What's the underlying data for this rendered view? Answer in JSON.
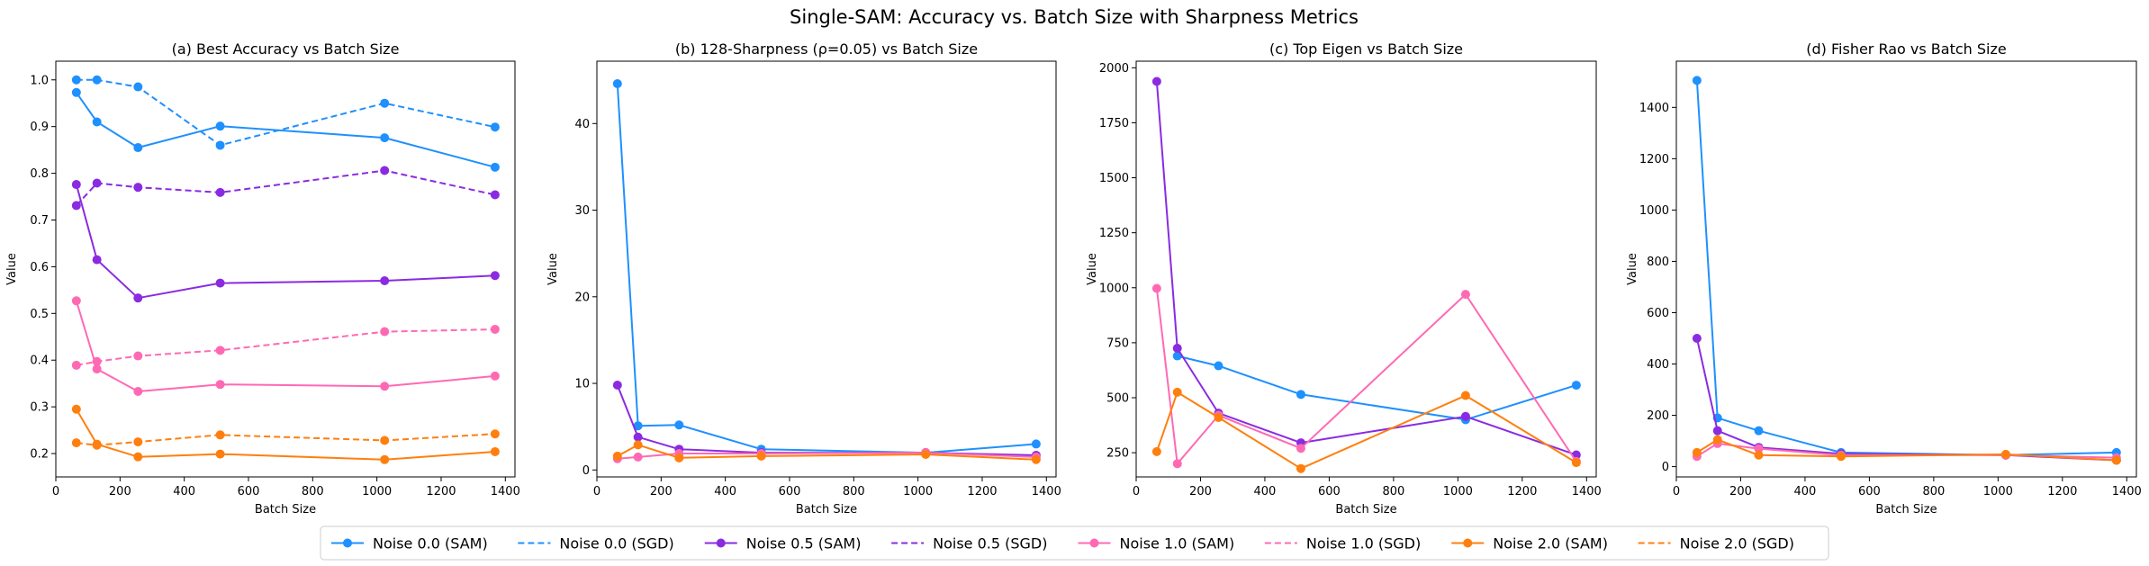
{
  "figure": {
    "suptitle": "Single-SAM: Accuracy vs. Batch Size with Sharpness Metrics"
  },
  "chart_data": [
    {
      "type": "line",
      "title": "(a) Best Accuracy vs Batch Size",
      "xlabel": "Batch Size",
      "ylabel": "Value",
      "xlim": [
        0,
        1430
      ],
      "ylim": [
        0.15,
        1.04
      ],
      "xticks": [
        0,
        200,
        400,
        600,
        800,
        1000,
        1200,
        1400
      ],
      "yticks": [
        0.2,
        0.3,
        0.4,
        0.5,
        0.6,
        0.7,
        0.8,
        0.9,
        1.0
      ],
      "ytick_labels": [
        "0.2",
        "0.3",
        "0.4",
        "0.5",
        "0.6",
        "0.7",
        "0.8",
        "0.9",
        "1.0"
      ],
      "x": [
        64,
        128,
        256,
        512,
        1024,
        1368
      ],
      "series": [
        {
          "name": "Noise 0.0 (SAM)",
          "style": "solid",
          "color": "#1e90ff",
          "values": [
            0.973,
            0.91,
            0.855,
            0.901,
            0.876,
            0.813
          ]
        },
        {
          "name": "Noise 0.0 (SGD)",
          "style": "dashed",
          "color": "#1e90ff",
          "values": [
            1.0,
            1.0,
            0.985,
            0.86,
            0.95,
            0.899
          ]
        },
        {
          "name": "Noise 0.5 (SAM)",
          "style": "solid",
          "color": "#8a2be2",
          "values": [
            0.776,
            0.615,
            0.533,
            0.565,
            0.57,
            0.581
          ]
        },
        {
          "name": "Noise 0.5 (SGD)",
          "style": "dashed",
          "color": "#8a2be2",
          "values": [
            0.731,
            0.779,
            0.77,
            0.759,
            0.806,
            0.754
          ]
        },
        {
          "name": "Noise 1.0 (SAM)",
          "style": "solid",
          "color": "#ff69b4",
          "values": [
            0.527,
            0.381,
            0.333,
            0.348,
            0.344,
            0.366
          ]
        },
        {
          "name": "Noise 1.0 (SGD)",
          "style": "dashed",
          "color": "#ff69b4",
          "values": [
            0.389,
            0.397,
            0.409,
            0.421,
            0.461,
            0.466
          ]
        },
        {
          "name": "Noise 2.0 (SAM)",
          "style": "solid",
          "color": "#ff7f0e",
          "values": [
            0.295,
            0.22,
            0.193,
            0.199,
            0.187,
            0.204
          ]
        },
        {
          "name": "Noise 2.0 (SGD)",
          "style": "dashed",
          "color": "#ff7f0e",
          "values": [
            0.223,
            0.218,
            0.225,
            0.24,
            0.228,
            0.242
          ]
        }
      ]
    },
    {
      "type": "line",
      "title": "(b) 128-Sharpness (ρ=0.05) vs Batch Size",
      "xlabel": "Batch Size",
      "ylabel": "Value",
      "xlim": [
        0,
        1430
      ],
      "ylim": [
        -0.8,
        47.2
      ],
      "xticks": [
        0,
        200,
        400,
        600,
        800,
        1000,
        1200,
        1400
      ],
      "yticks": [
        0,
        10,
        20,
        30,
        40
      ],
      "ytick_labels": [
        "0",
        "10",
        "20",
        "30",
        "40"
      ],
      "x": [
        64,
        128,
        256,
        512,
        1024,
        1368
      ],
      "series": [
        {
          "name": "Noise 0.0 (SAM)",
          "style": "solid",
          "color": "#1e90ff",
          "values": [
            44.6,
            5.1,
            5.2,
            2.4,
            2.0,
            3.0
          ]
        },
        {
          "name": "Noise 0.5 (SAM)",
          "style": "solid",
          "color": "#8a2be2",
          "values": [
            9.8,
            3.8,
            2.4,
            2.0,
            2.0,
            1.7
          ]
        },
        {
          "name": "Noise 1.0 (SAM)",
          "style": "solid",
          "color": "#ff69b4",
          "values": [
            1.3,
            1.5,
            1.9,
            1.9,
            2.0,
            1.5
          ]
        },
        {
          "name": "Noise 2.0 (SAM)",
          "style": "solid",
          "color": "#ff7f0e",
          "values": [
            1.6,
            2.9,
            1.4,
            1.6,
            1.8,
            1.2
          ]
        }
      ]
    },
    {
      "type": "line",
      "title": "(c) Top Eigen vs Batch Size",
      "xlabel": "Batch Size",
      "ylabel": "Value",
      "xlim": [
        0,
        1430
      ],
      "ylim": [
        140,
        2030
      ],
      "xticks": [
        0,
        200,
        400,
        600,
        800,
        1000,
        1200,
        1400
      ],
      "yticks": [
        250,
        500,
        750,
        1000,
        1250,
        1500,
        1750,
        2000
      ],
      "ytick_labels": [
        "250",
        "500",
        "750",
        "1000",
        "1250",
        "1500",
        "1750",
        "2000"
      ],
      "x": [
        64,
        128,
        256,
        512,
        1024,
        1368
      ],
      "series": [
        {
          "name": "Noise 0.0 (SAM)",
          "style": "solid",
          "color": "#1e90ff",
          "values": [
            null,
            690,
            645,
            515,
            400,
            557
          ]
        },
        {
          "name": "Noise 0.5 (SAM)",
          "style": "solid",
          "color": "#8a2be2",
          "values": [
            1938,
            725,
            430,
            295,
            415,
            240
          ]
        },
        {
          "name": "Noise 1.0 (SAM)",
          "style": "solid",
          "color": "#ff69b4",
          "values": [
            997,
            200,
            420,
            270,
            970,
            210
          ]
        },
        {
          "name": "Noise 2.0 (SAM)",
          "style": "solid",
          "color": "#ff7f0e",
          "values": [
            255,
            525,
            410,
            178,
            510,
            205
          ]
        }
      ]
    },
    {
      "type": "line",
      "title": "(d) Fisher Rao vs Batch Size",
      "xlabel": "Batch Size",
      "ylabel": "Value",
      "xlim": [
        0,
        1430
      ],
      "ylim": [
        -40,
        1580
      ],
      "xticks": [
        0,
        200,
        400,
        600,
        800,
        1000,
        1200,
        1400
      ],
      "yticks": [
        0,
        200,
        400,
        600,
        800,
        1000,
        1200,
        1400
      ],
      "ytick_labels": [
        "0",
        "200",
        "400",
        "600",
        "800",
        "1000",
        "1200",
        "1400"
      ],
      "x": [
        64,
        128,
        256,
        512,
        1024,
        1368
      ],
      "series": [
        {
          "name": "Noise 0.0 (SAM)",
          "style": "solid",
          "color": "#1e90ff",
          "values": [
            1505,
            190,
            140,
            55,
            45,
            55
          ]
        },
        {
          "name": "Noise 0.5 (SAM)",
          "style": "solid",
          "color": "#8a2be2",
          "values": [
            500,
            140,
            75,
            50,
            45,
            25
          ]
        },
        {
          "name": "Noise 1.0 (SAM)",
          "style": "solid",
          "color": "#ff69b4",
          "values": [
            40,
            90,
            70,
            45,
            45,
            35
          ]
        },
        {
          "name": "Noise 2.0 (SAM)",
          "style": "solid",
          "color": "#ff7f0e",
          "values": [
            55,
            105,
            45,
            40,
            48,
            25
          ]
        }
      ]
    }
  ],
  "legend": {
    "placement": "bottom-center",
    "entries": [
      {
        "label": "Noise 0.0 (SAM)",
        "color": "#1e90ff",
        "style": "solid"
      },
      {
        "label": "Noise 0.0 (SGD)",
        "color": "#1e90ff",
        "style": "dashed"
      },
      {
        "label": "Noise 0.5 (SAM)",
        "color": "#8a2be2",
        "style": "solid"
      },
      {
        "label": "Noise 0.5 (SGD)",
        "color": "#8a2be2",
        "style": "dashed"
      },
      {
        "label": "Noise 1.0 (SAM)",
        "color": "#ff69b4",
        "style": "solid"
      },
      {
        "label": "Noise 1.0 (SGD)",
        "color": "#ff69b4",
        "style": "dashed"
      },
      {
        "label": "Noise 2.0 (SAM)",
        "color": "#ff7f0e",
        "style": "solid"
      },
      {
        "label": "Noise 2.0 (SGD)",
        "color": "#ff7f0e",
        "style": "dashed"
      }
    ]
  }
}
